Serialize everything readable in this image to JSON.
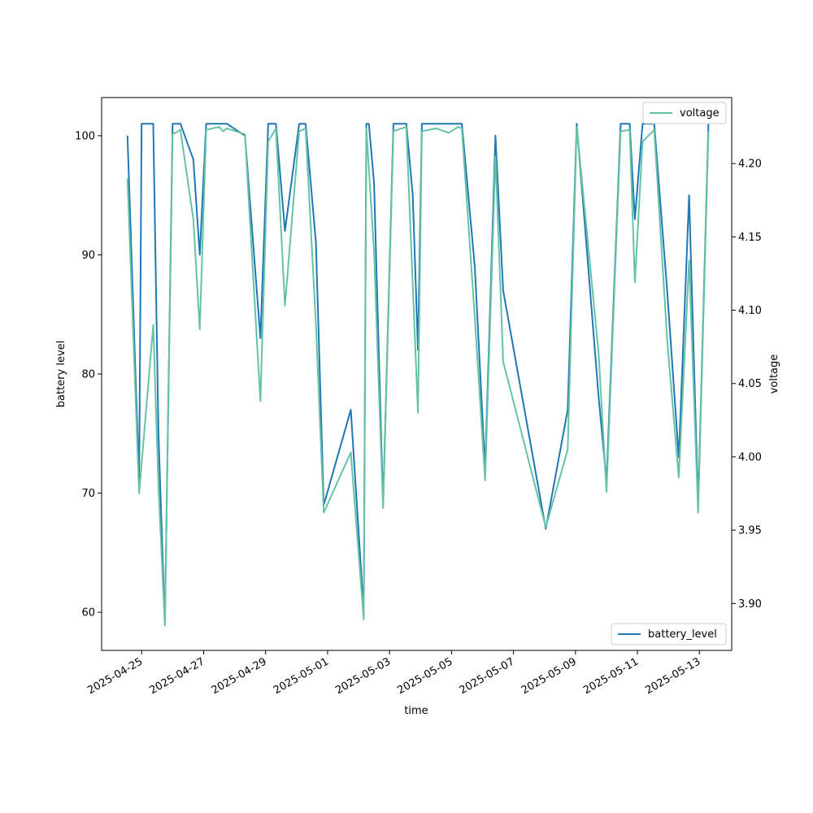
{
  "chart_data": {
    "type": "line",
    "xlabel": "time",
    "ylabel_left": "battery level",
    "ylabel_right": "voltage",
    "x_ticks": [
      "2025-04-25",
      "2025-04-27",
      "2025-04-29",
      "2025-05-01",
      "2025-05-03",
      "2025-05-05",
      "2025-05-07",
      "2025-05-09",
      "2025-05-11",
      "2025-05-13"
    ],
    "y_left_ticks": [
      60,
      70,
      80,
      90,
      100
    ],
    "y_right_ticks": [
      3.9,
      3.95,
      4.0,
      4.05,
      4.1,
      4.15,
      4.2
    ],
    "y_left_range": [
      56.8,
      103.2
    ],
    "y_right_range": [
      3.868,
      4.245
    ],
    "x_range": [
      "2025-04-23 17:00",
      "2025-05-14 01:00"
    ],
    "legend": {
      "battery": "lower-right",
      "voltage": "upper-right"
    },
    "grid": false,
    "series": [
      {
        "name": "battery_level",
        "axis": "left",
        "color": "#1f77b4",
        "points": [
          [
            "2025-04-24 13:00",
            100
          ],
          [
            "2025-04-24 22:00",
            71
          ],
          [
            "2025-04-25 00:00",
            101
          ],
          [
            "2025-04-25 09:00",
            101
          ],
          [
            "2025-04-25 13:00",
            75
          ],
          [
            "2025-04-25 18:00",
            59
          ],
          [
            "2025-04-26 00:00",
            101
          ],
          [
            "2025-04-26 06:00",
            101
          ],
          [
            "2025-04-26 16:00",
            98
          ],
          [
            "2025-04-26 21:00",
            90
          ],
          [
            "2025-04-27 02:00",
            101
          ],
          [
            "2025-04-27 18:00",
            101
          ],
          [
            "2025-04-28 08:00",
            100
          ],
          [
            "2025-04-28 20:00",
            83
          ],
          [
            "2025-04-29 02:00",
            101
          ],
          [
            "2025-04-29 08:00",
            101
          ],
          [
            "2025-04-29 15:00",
            92
          ],
          [
            "2025-04-30 02:00",
            101
          ],
          [
            "2025-04-30 07:00",
            101
          ],
          [
            "2025-04-30 15:00",
            91
          ],
          [
            "2025-04-30 21:00",
            69
          ],
          [
            "2025-05-01 18:00",
            77
          ],
          [
            "2025-05-02 04:00",
            60
          ],
          [
            "2025-05-02 06:00",
            101
          ],
          [
            "2025-05-02 08:00",
            101
          ],
          [
            "2025-05-02 12:00",
            96
          ],
          [
            "2025-05-02 19:00",
            69
          ],
          [
            "2025-05-03 03:00",
            101
          ],
          [
            "2025-05-03 13:00",
            101
          ],
          [
            "2025-05-03 18:00",
            95
          ],
          [
            "2025-05-03 22:00",
            82
          ],
          [
            "2025-05-04 01:00",
            101
          ],
          [
            "2025-05-05 08:00",
            101
          ],
          [
            "2025-05-05 18:00",
            89
          ],
          [
            "2025-05-06 02:00",
            72
          ],
          [
            "2025-05-06 10:00",
            100
          ],
          [
            "2025-05-06 16:00",
            87
          ],
          [
            "2025-05-08 01:00",
            67
          ],
          [
            "2025-05-08 18:00",
            77
          ],
          [
            "2025-05-09 01:00",
            101
          ],
          [
            "2025-05-09 18:00",
            78
          ],
          [
            "2025-05-10 00:00",
            71
          ],
          [
            "2025-05-10 11:00",
            101
          ],
          [
            "2025-05-10 18:00",
            101
          ],
          [
            "2025-05-10 22:00",
            93
          ],
          [
            "2025-05-11 04:00",
            101
          ],
          [
            "2025-05-11 13:00",
            101
          ],
          [
            "2025-05-11 23:00",
            87
          ],
          [
            "2025-05-12 08:00",
            73
          ],
          [
            "2025-05-12 16:00",
            95
          ],
          [
            "2025-05-12 23:00",
            69
          ],
          [
            "2025-05-13 07:00",
            101
          ]
        ]
      },
      {
        "name": "voltage",
        "axis": "right",
        "color": "#66c2a5",
        "points": [
          [
            "2025-04-24 13:00",
            4.19
          ],
          [
            "2025-04-24 22:00",
            3.975
          ],
          [
            "2025-04-25 09:00",
            4.09
          ],
          [
            "2025-04-25 13:00",
            3.98
          ],
          [
            "2025-04-25 18:00",
            3.885
          ],
          [
            "2025-04-26 00:00",
            4.22
          ],
          [
            "2025-04-26 06:00",
            4.223
          ],
          [
            "2025-04-26 16:00",
            4.162
          ],
          [
            "2025-04-26 21:00",
            4.087
          ],
          [
            "2025-04-27 02:00",
            4.223
          ],
          [
            "2025-04-27 12:00",
            4.225
          ],
          [
            "2025-04-27 15:00",
            4.222
          ],
          [
            "2025-04-27 18:00",
            4.224
          ],
          [
            "2025-04-28 08:00",
            4.22
          ],
          [
            "2025-04-28 20:00",
            4.038
          ],
          [
            "2025-04-29 02:00",
            4.215
          ],
          [
            "2025-04-29 08:00",
            4.224
          ],
          [
            "2025-04-29 15:00",
            4.103
          ],
          [
            "2025-04-30 02:00",
            4.222
          ],
          [
            "2025-04-30 07:00",
            4.224
          ],
          [
            "2025-04-30 15:00",
            4.09
          ],
          [
            "2025-04-30 21:00",
            3.962
          ],
          [
            "2025-05-01 18:00",
            4.003
          ],
          [
            "2025-05-02 04:00",
            3.889
          ],
          [
            "2025-05-02 06:00",
            4.224
          ],
          [
            "2025-05-02 12:00",
            4.14
          ],
          [
            "2025-05-02 19:00",
            3.965
          ],
          [
            "2025-05-03 03:00",
            4.222
          ],
          [
            "2025-05-03 13:00",
            4.225
          ],
          [
            "2025-05-03 22:00",
            4.03
          ],
          [
            "2025-05-04 01:00",
            4.222
          ],
          [
            "2025-05-04 12:00",
            4.224
          ],
          [
            "2025-05-04 22:00",
            4.221
          ],
          [
            "2025-05-05 05:00",
            4.225
          ],
          [
            "2025-05-05 08:00",
            4.224
          ],
          [
            "2025-05-05 18:00",
            4.095
          ],
          [
            "2025-05-06 02:00",
            3.984
          ],
          [
            "2025-05-06 10:00",
            4.205
          ],
          [
            "2025-05-06 16:00",
            4.065
          ],
          [
            "2025-05-08 01:00",
            3.952
          ],
          [
            "2025-05-08 18:00",
            4.005
          ],
          [
            "2025-05-09 01:00",
            4.225
          ],
          [
            "2025-05-09 18:00",
            4.07
          ],
          [
            "2025-05-10 00:00",
            3.976
          ],
          [
            "2025-05-10 11:00",
            4.222
          ],
          [
            "2025-05-10 18:00",
            4.223
          ],
          [
            "2025-05-10 22:00",
            4.119
          ],
          [
            "2025-05-11 04:00",
            4.215
          ],
          [
            "2025-05-11 13:00",
            4.223
          ],
          [
            "2025-05-11 23:00",
            4.08
          ],
          [
            "2025-05-12 08:00",
            3.986
          ],
          [
            "2025-05-12 16:00",
            4.134
          ],
          [
            "2025-05-12 23:00",
            3.962
          ],
          [
            "2025-05-13 07:00",
            4.222
          ]
        ]
      }
    ]
  }
}
